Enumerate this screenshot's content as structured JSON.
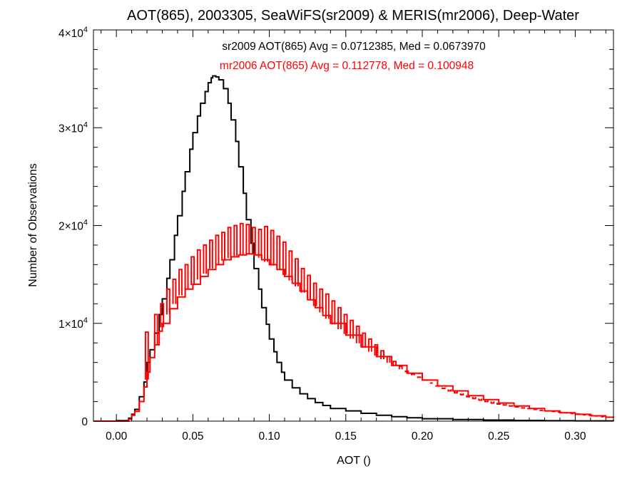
{
  "chart_data": {
    "type": "step",
    "title": "AOT(865), 2003305, SeaWiFS(sr2009) & MERIS(mr2006), Deep-Water",
    "xlabel": "AOT ()",
    "ylabel": "Number of Observations",
    "xlim": [
      -0.015,
      0.325
    ],
    "ylim": [
      0,
      40000
    ],
    "x_ticks": [
      "0.00",
      "0.05",
      "0.10",
      "0.15",
      "0.20",
      "0.25",
      "0.30"
    ],
    "x_tick_values": [
      0.0,
      0.05,
      0.1,
      0.15,
      0.2,
      0.25,
      0.3
    ],
    "y_ticks": [
      {
        "value": 0,
        "mantissa": "0",
        "exponent": ""
      },
      {
        "value": 10000,
        "mantissa": "1×10",
        "exponent": "4"
      },
      {
        "value": 20000,
        "mantissa": "2×10",
        "exponent": "4"
      },
      {
        "value": 30000,
        "mantissa": "3×10",
        "exponent": "4"
      },
      {
        "value": 40000,
        "mantissa": "4×10",
        "exponent": "4"
      }
    ],
    "annotations": [
      {
        "text": "sr2009 AOT(865) Avg = 0.0712385, Med = 0.0673970",
        "color": "#000000"
      },
      {
        "text": "mr2006 AOT(865) Avg = 0.112778, Med = 0.100948",
        "color": "#ff0000"
      }
    ],
    "series": [
      {
        "name": "sr2009",
        "color": "#000000",
        "x": [
          -0.015,
          0.0,
          0.008,
          0.01,
          0.012,
          0.015,
          0.018,
          0.02,
          0.022,
          0.025,
          0.028,
          0.03,
          0.033,
          0.035,
          0.038,
          0.04,
          0.043,
          0.045,
          0.048,
          0.05,
          0.053,
          0.055,
          0.058,
          0.06,
          0.062,
          0.063,
          0.065,
          0.067,
          0.07,
          0.073,
          0.075,
          0.078,
          0.08,
          0.083,
          0.085,
          0.088,
          0.09,
          0.093,
          0.095,
          0.098,
          0.1,
          0.103,
          0.105,
          0.108,
          0.11,
          0.115,
          0.12,
          0.125,
          0.13,
          0.135,
          0.14,
          0.15,
          0.16,
          0.17,
          0.18,
          0.19,
          0.2,
          0.22,
          0.24,
          0.26,
          0.28,
          0.3,
          0.325
        ],
        "y": [
          0,
          50,
          300,
          700,
          1200,
          2500,
          4000,
          6000,
          7300,
          9000,
          10900,
          12500,
          14600,
          16500,
          19000,
          21000,
          23500,
          25500,
          27800,
          29500,
          31200,
          32500,
          33700,
          34600,
          35100,
          35300,
          35200,
          34900,
          34000,
          32500,
          30800,
          28600,
          26000,
          23300,
          20600,
          18200,
          15600,
          13500,
          11600,
          9900,
          8400,
          7100,
          6000,
          5000,
          4200,
          3400,
          2800,
          2300,
          1900,
          1600,
          1300,
          1050,
          800,
          600,
          450,
          340,
          250,
          170,
          110,
          70,
          45,
          30,
          20
        ]
      },
      {
        "name": "mr2006",
        "color": "#ff0000",
        "x": [
          -0.015,
          0.0,
          0.008,
          0.01,
          0.012,
          0.015,
          0.018,
          0.02,
          0.022,
          0.025,
          0.028,
          0.03,
          0.035,
          0.04,
          0.045,
          0.05,
          0.055,
          0.06,
          0.065,
          0.07,
          0.075,
          0.08,
          0.085,
          0.09,
          0.095,
          0.1,
          0.105,
          0.11,
          0.115,
          0.12,
          0.125,
          0.13,
          0.135,
          0.14,
          0.15,
          0.16,
          0.17,
          0.18,
          0.19,
          0.2,
          0.21,
          0.22,
          0.23,
          0.24,
          0.25,
          0.26,
          0.27,
          0.28,
          0.29,
          0.3,
          0.31,
          0.32,
          0.325
        ],
        "y": [
          0,
          0,
          200,
          600,
          1000,
          2000,
          3500,
          5000,
          6500,
          7800,
          9200,
          10000,
          11500,
          12700,
          13500,
          14000,
          14800,
          15500,
          16000,
          16500,
          16800,
          17000,
          17100,
          17000,
          16500,
          16000,
          15500,
          14800,
          14100,
          13300,
          12400,
          11600,
          10800,
          10000,
          8800,
          7600,
          6600,
          5700,
          4900,
          4200,
          3600,
          3100,
          2600,
          2200,
          1850,
          1550,
          1300,
          1050,
          850,
          700,
          550,
          400,
          350
        ]
      }
    ],
    "spikes": [
      {
        "series": "mr2006",
        "x": [
          0.019,
          0.025,
          0.029,
          0.033,
          0.037,
          0.041,
          0.045,
          0.049,
          0.053,
          0.057,
          0.061,
          0.065,
          0.069,
          0.073,
          0.077,
          0.081,
          0.085,
          0.089,
          0.093,
          0.097,
          0.101,
          0.105,
          0.109,
          0.113,
          0.117,
          0.121,
          0.125,
          0.129,
          0.133,
          0.137,
          0.141,
          0.145,
          0.149,
          0.153,
          0.157,
          0.161,
          0.165,
          0.169,
          0.173,
          0.177,
          0.181,
          0.185,
          0.189,
          0.193,
          0.197,
          0.201,
          0.205,
          0.209,
          0.213,
          0.217,
          0.221,
          0.225,
          0.229,
          0.233,
          0.237,
          0.241,
          0.245,
          0.249,
          0.253,
          0.257,
          0.261,
          0.265,
          0.269,
          0.273,
          0.277,
          0.281,
          0.285,
          0.289,
          0.293,
          0.297,
          0.301,
          0.305,
          0.309,
          0.313,
          0.317,
          0.321
        ],
        "y": [
          9100,
          10900,
          12000,
          13500,
          14500,
          15500,
          16000,
          16800,
          17500,
          18000,
          18500,
          19000,
          19300,
          19800,
          20000,
          20200,
          20100,
          19800,
          19600,
          19900,
          19500,
          18900,
          18300,
          17400,
          16600,
          15600,
          14900,
          14100,
          13500,
          13000,
          12300,
          11600,
          10900,
          10300,
          9700,
          9000,
          8400,
          7800,
          7200,
          6600,
          6100,
          5600,
          5100,
          4800,
          4500,
          4200,
          3900,
          3600,
          3350,
          3100,
          2900,
          2700,
          2500,
          2300,
          2150,
          2000,
          1850,
          1750,
          1650,
          1550,
          1450,
          1350,
          1300,
          1200,
          1100,
          1050,
          980,
          900,
          850,
          780,
          720,
          650,
          600,
          530,
          460,
          400
        ]
      }
    ]
  }
}
